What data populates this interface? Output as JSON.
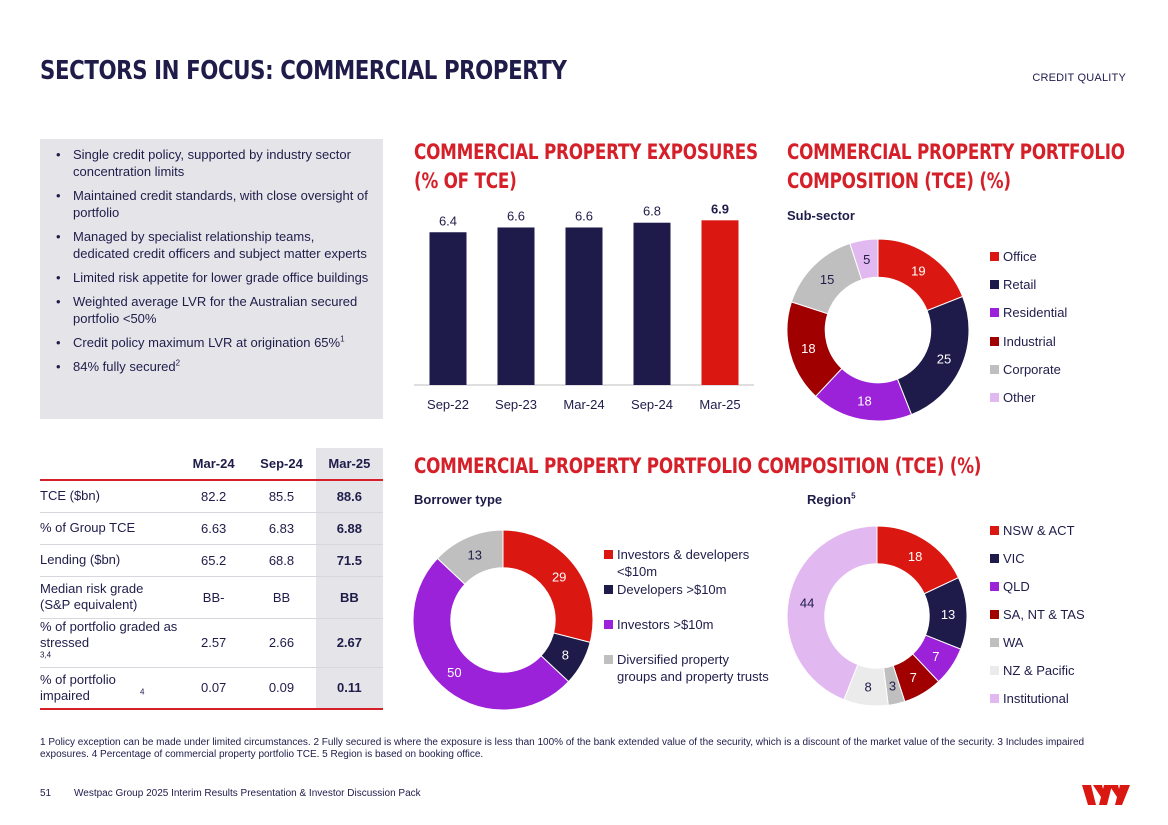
{
  "header": {
    "title": "SECTORS IN FOCUS: COMMERCIAL PROPERTY",
    "section": "CREDIT QUALITY"
  },
  "bullets": [
    "Single credit policy, supported by industry sector concentration limits",
    "Maintained credit standards, with close oversight of portfolio",
    "Managed by specialist relationship teams, dedicated credit officers and subject matter experts",
    "Limited risk appetite for lower grade office buildings",
    "Weighted average LVR for the Australian secured portfolio <50%",
    "Credit policy maximum LVR at origination 65%",
    "84% fully secured"
  ],
  "bullet_sups": [
    "",
    "",
    "",
    "",
    "",
    "1",
    "2"
  ],
  "table": {
    "headers": [
      "Mar-24",
      "Sep-24",
      "Mar-25"
    ],
    "rows": [
      {
        "label": "TCE ($bn)",
        "sup": "",
        "values": [
          "82.2",
          "85.5",
          "88.6"
        ]
      },
      {
        "label": "% of Group TCE",
        "sup": "",
        "values": [
          "6.63",
          "6.83",
          "6.88"
        ]
      },
      {
        "label": "Lending ($bn)",
        "sup": "",
        "values": [
          "65.2",
          "68.8",
          "71.5"
        ]
      },
      {
        "label": "Median risk grade (S&P equivalent)",
        "sup": "",
        "values": [
          "BB-",
          "BB",
          "BB"
        ]
      },
      {
        "label": "% of portfolio graded as stressed",
        "sup": "3,4",
        "values": [
          "2.57",
          "2.66",
          "2.67"
        ]
      },
      {
        "label": "% of portfolio impaired",
        "sup": "4",
        "values": [
          "0.07",
          "0.09",
          "0.11"
        ]
      }
    ]
  },
  "section_titles": {
    "exposures_line1": "COMMERCIAL PROPERTY EXPOSURES",
    "exposures_line2": "(% OF TCE)",
    "composition_line1": "COMMERCIAL PROPERTY PORTFOLIO",
    "composition_line2": "COMPOSITION (TCE) (%)",
    "composition_wide": "COMMERCIAL PROPERTY PORTFOLIO COMPOSITION (TCE) (%)"
  },
  "chart_data": [
    {
      "type": "bar",
      "title": "COMMERCIAL PROPERTY EXPOSURES (% OF TCE)",
      "categories": [
        "Sep-22",
        "Sep-23",
        "Mar-24",
        "Sep-24",
        "Mar-25"
      ],
      "values": [
        6.4,
        6.6,
        6.6,
        6.8,
        6.9
      ],
      "labels": [
        "6.4",
        "6.6",
        "6.6",
        "6.8",
        "6.9"
      ],
      "colors": [
        "#1e1a4a",
        "#1e1a4a",
        "#1e1a4a",
        "#1e1a4a",
        "#da1710"
      ],
      "ylim": [
        0,
        7.5
      ]
    },
    {
      "type": "pie",
      "subtitle": "Sub-sector",
      "categories": [
        "Office",
        "Retail",
        "Residential",
        "Industrial",
        "Corporate",
        "Other"
      ],
      "values": [
        19,
        25,
        18,
        18,
        15,
        5
      ],
      "colors": [
        "#da1710",
        "#1e1a4a",
        "#9b22d8",
        "#a00000",
        "#bfbfbf",
        "#e2b8f0"
      ],
      "label_colors": [
        "#ffffff",
        "#ffffff",
        "#ffffff",
        "#ffffff",
        "#1f1c4a",
        "#1f1c4a"
      ]
    },
    {
      "type": "pie",
      "subtitle": "Borrower type",
      "categories": [
        "Investors & developers <$10m",
        "Developers >$10m",
        "Investors >$10m",
        "Diversified property groups and property trusts"
      ],
      "legend_lines": [
        [
          "Investors & developers",
          "<$10m"
        ],
        [
          "Developers >$10m"
        ],
        [
          "Investors >$10m"
        ],
        [
          "Diversified property",
          "groups and property trusts"
        ]
      ],
      "values": [
        29,
        8,
        50,
        13
      ],
      "colors": [
        "#da1710",
        "#1e1a4a",
        "#9b22d8",
        "#bfbfbf"
      ],
      "label_colors": [
        "#ffffff",
        "#ffffff",
        "#ffffff",
        "#1f1c4a"
      ]
    },
    {
      "type": "pie",
      "subtitle": "Region",
      "subtitle_sup": "5",
      "categories": [
        "NSW & ACT",
        "VIC",
        "QLD",
        "SA, NT & TAS",
        "WA",
        "NZ & Pacific",
        "Institutional"
      ],
      "values": [
        18,
        13,
        7,
        7,
        3,
        8,
        44
      ],
      "colors": [
        "#da1710",
        "#1e1a4a",
        "#9b22d8",
        "#a00000",
        "#bfbfbf",
        "#ebebeb",
        "#e2b8f0"
      ],
      "label_colors": [
        "#ffffff",
        "#ffffff",
        "#ffffff",
        "#ffffff",
        "#1f1c4a",
        "#1f1c4a",
        "#1f1c4a"
      ]
    }
  ],
  "footnote": "1 Policy exception can be made under limited circumstances. 2 Fully secured is where the exposure is less than 100% of the bank extended value of the security, which is a discount of the market value of the security. 3 Includes impaired exposures. 4 Percentage of commercial property portfolio TCE. 5 Region is based on booking office.",
  "footer": {
    "page_number": "51",
    "text": "Westpac Group 2025 Interim Results Presentation & Investor Discussion Pack"
  },
  "brand": {
    "red": "#da1710",
    "navy": "#1f1c4a"
  }
}
